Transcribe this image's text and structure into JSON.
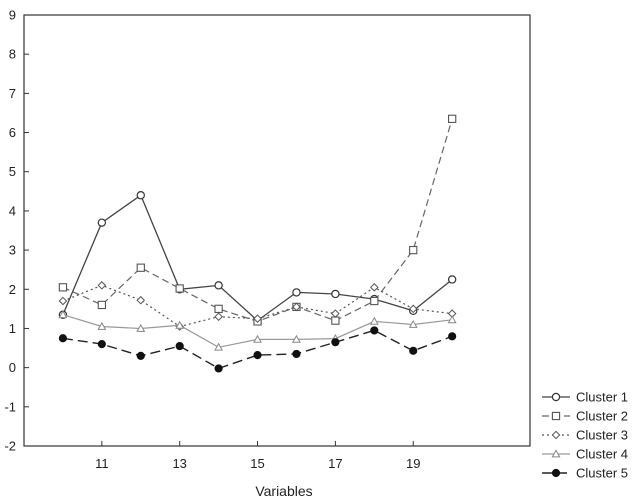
{
  "chart_data": {
    "type": "line",
    "title": "",
    "xlabel": "Variables",
    "ylabel": "",
    "xlim": [
      9,
      22
    ],
    "ylim": [
      -2,
      9
    ],
    "x_ticks": [
      11,
      13,
      15,
      17,
      19
    ],
    "y_ticks": [
      -2,
      -1,
      0,
      1,
      2,
      3,
      4,
      5,
      6,
      7,
      8,
      9
    ],
    "grid": false,
    "legend_position": "bottom-right",
    "x": [
      10,
      11,
      12,
      13,
      14,
      15,
      16,
      17,
      18,
      19,
      20
    ],
    "series": [
      {
        "name": "Cluster 1",
        "marker": "circle-open",
        "dash": "solid",
        "values": [
          1.35,
          3.7,
          4.4,
          2.0,
          2.1,
          1.2,
          1.92,
          1.88,
          1.75,
          1.45,
          2.25
        ]
      },
      {
        "name": "Cluster 2",
        "marker": "square-open",
        "dash": "dashed",
        "values": [
          2.05,
          1.6,
          2.55,
          2.02,
          1.5,
          1.18,
          1.55,
          1.2,
          1.7,
          3.0,
          6.35
        ]
      },
      {
        "name": "Cluster 3",
        "marker": "diamond-open",
        "dash": "dotted",
        "values": [
          1.7,
          2.1,
          1.72,
          1.05,
          1.3,
          1.25,
          1.55,
          1.38,
          2.05,
          1.5,
          1.38
        ]
      },
      {
        "name": "Cluster 4",
        "marker": "triangle-open",
        "dash": "solid-light",
        "values": [
          1.35,
          1.05,
          1.0,
          1.08,
          0.52,
          0.72,
          0.72,
          0.74,
          1.18,
          1.1,
          1.22
        ]
      },
      {
        "name": "Cluster 5",
        "marker": "circle-filled",
        "dash": "long-dash",
        "values": [
          0.75,
          0.6,
          0.3,
          0.55,
          -0.02,
          0.32,
          0.35,
          0.65,
          0.95,
          0.43,
          0.8
        ]
      }
    ]
  }
}
